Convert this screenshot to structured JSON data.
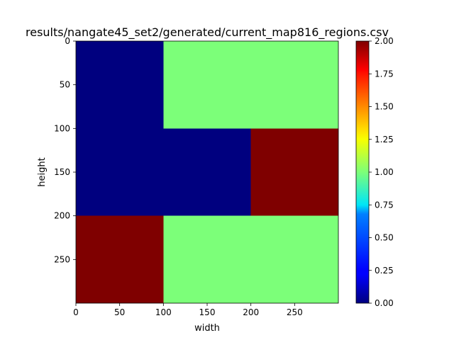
{
  "chart_data": {
    "type": "heatmap",
    "title": "results/nangate45_set2/generated/current_map816_regions.csv",
    "xlabel": "width",
    "ylabel": "height",
    "xlim": [
      0,
      300
    ],
    "ylim": [
      300,
      0
    ],
    "xticks": [
      0,
      50,
      100,
      150,
      200,
      250
    ],
    "yticks": [
      0,
      50,
      100,
      150,
      200,
      250
    ],
    "colormap": "jet",
    "vmin": 0,
    "vmax": 2,
    "colorbar_ticks": [
      "0.00",
      "0.25",
      "0.50",
      "0.75",
      "1.00",
      "1.25",
      "1.50",
      "1.75",
      "2.00"
    ],
    "regions": [
      {
        "x": [
          0,
          100
        ],
        "y": [
          0,
          100
        ],
        "value": 0
      },
      {
        "x": [
          100,
          300
        ],
        "y": [
          0,
          100
        ],
        "value": 1
      },
      {
        "x": [
          0,
          200
        ],
        "y": [
          100,
          200
        ],
        "value": 0
      },
      {
        "x": [
          200,
          300
        ],
        "y": [
          100,
          200
        ],
        "value": 2
      },
      {
        "x": [
          0,
          100
        ],
        "y": [
          200,
          300
        ],
        "value": 2
      },
      {
        "x": [
          100,
          300
        ],
        "y": [
          200,
          300
        ],
        "value": 1
      }
    ],
    "colors": {
      "0": "#00007f",
      "1": "#7cff79",
      "2": "#7f0000"
    }
  }
}
